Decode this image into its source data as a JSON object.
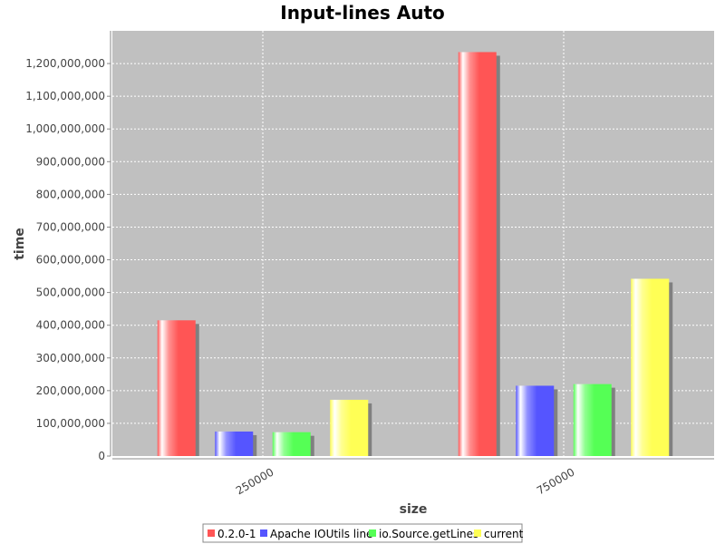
{
  "chart_data": {
    "type": "bar",
    "title": "Input-lines Auto",
    "xlabel": "size",
    "ylabel": "time",
    "categories": [
      "250000",
      "750000"
    ],
    "series": [
      {
        "name": "0.2.0-1",
        "color": "#ff5555",
        "values": [
          415000000,
          1235000000
        ]
      },
      {
        "name": "Apache IOUtils line",
        "color": "#5555ff",
        "values": [
          75000000,
          215000000
        ]
      },
      {
        "name": "io.Source.getLines",
        "color": "#55ff55",
        "values": [
          73000000,
          220000000
        ]
      },
      {
        "name": "current",
        "color": "#ffff55",
        "values": [
          172000000,
          542000000
        ]
      }
    ],
    "ylim": [
      0,
      1300000000
    ],
    "yticks": [
      0,
      100000000,
      200000000,
      300000000,
      400000000,
      500000000,
      600000000,
      700000000,
      800000000,
      900000000,
      1000000000,
      1100000000,
      1200000000
    ],
    "ytick_labels": [
      "0",
      "100,000,000",
      "200,000,000",
      "300,000,000",
      "400,000,000",
      "500,000,000",
      "600,000,000",
      "700,000,000",
      "800,000,000",
      "900,000,000",
      "1,000,000,000",
      "1,100,000,000",
      "1,200,000,000"
    ],
    "grid": true,
    "legend_position": "bottom",
    "plot_background": "#c0c0c0"
  }
}
